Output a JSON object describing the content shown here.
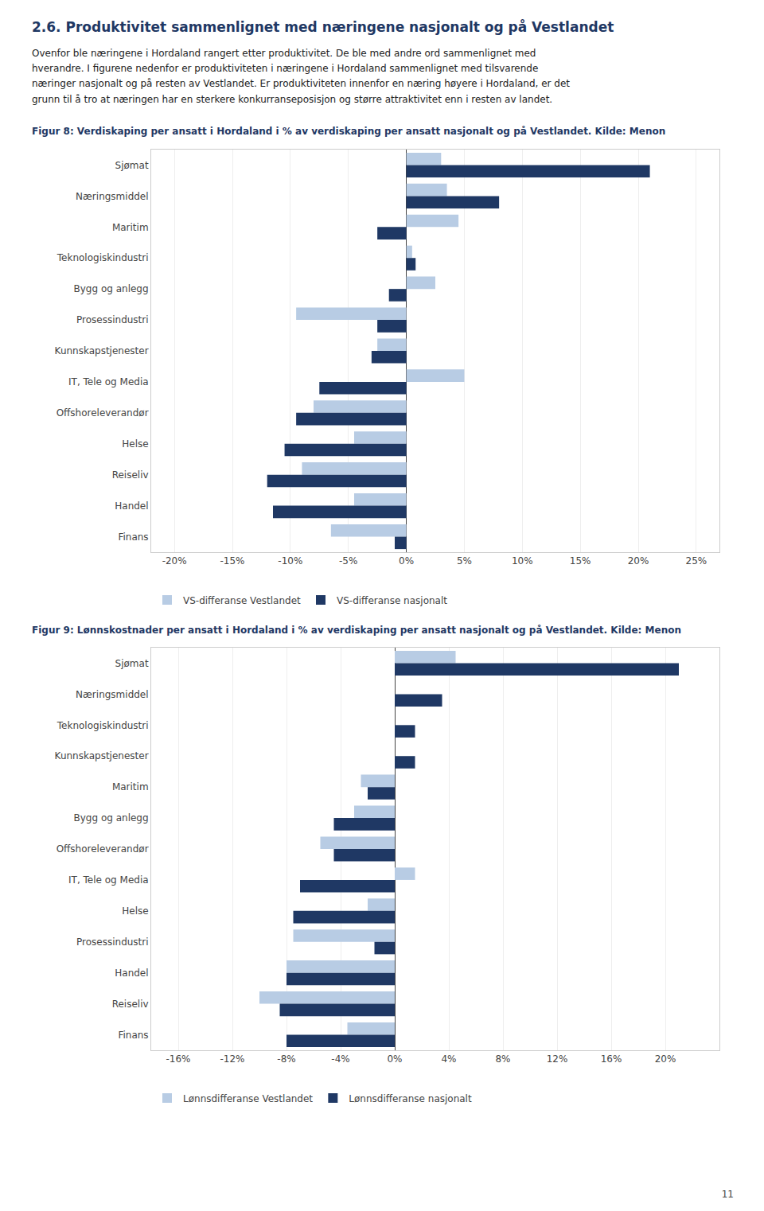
{
  "title": "2.6.    Produktivitet sammenlignet med næringene nasjonalt og på Vestlandet",
  "subtitle": [
    "Ovenfor ble næringene i Hordaland rangert etter produktivitet. De ble med andre ord sammenlignet med",
    "hverandre. I figurene nedenfor er produktiviteten i næringene i Hordaland sammenlignet med tilsvarende",
    "næringer nasjonalt og på resten av Vestlandet. Er produktiviteten innenfor en næring høyere i Hordaland, er det",
    "grunn til å tro at næringen har en sterkere konkurranseposisjon og større attraktivitet enn i resten av landet."
  ],
  "annotations": [
    "11"
  ],
  "chart_data": [
    {
      "type": "bar",
      "orientation": "horizontal",
      "title": "Figur 8: Verdiskaping per ansatt i Hordaland i % av verdiskaping per ansatt nasjonalt og på Vestlandet. Kilde: Menon",
      "categories": [
        "Sjømat",
        "Næringsmiddel",
        "Maritim",
        "Teknologiskindustri",
        "Bygg og anlegg",
        "Prosessindustri",
        "Kunnskapstjenester",
        "IT, Tele og Media",
        "Offshoreleverandør",
        "Helse",
        "Reiseliv",
        "Handel",
        "Finans"
      ],
      "series": [
        {
          "name": "VS-differanse Vestlandet",
          "color": "#b8cce4",
          "values": [
            3.0,
            3.5,
            4.5,
            0.5,
            2.5,
            -9.5,
            -2.5,
            5.0,
            -8.0,
            -4.5,
            -9.0,
            -4.5,
            -6.5
          ]
        },
        {
          "name": "VS-differanse nasjonalt",
          "color": "#1f3864",
          "values": [
            21.0,
            8.0,
            -2.5,
            0.8,
            -1.5,
            -2.5,
            -3.0,
            -7.5,
            -9.5,
            -10.5,
            -12.0,
            -11.5,
            -1.0
          ]
        }
      ],
      "xlim": [
        -22,
        27
      ],
      "xticks": [
        {
          "value": -20,
          "label": "-20%"
        },
        {
          "value": -15,
          "label": "-15%"
        },
        {
          "value": -10,
          "label": "-10%"
        },
        {
          "value": -5,
          "label": "-5%"
        },
        {
          "value": 0,
          "label": "0%"
        },
        {
          "value": 5,
          "label": "5%"
        },
        {
          "value": 10,
          "label": "10%"
        },
        {
          "value": 15,
          "label": "15%"
        },
        {
          "value": 20,
          "label": "20%"
        },
        {
          "value": 25,
          "label": "25%"
        }
      ],
      "grid": true,
      "legend": "lower left"
    },
    {
      "type": "bar",
      "orientation": "horizontal",
      "title": "Figur 9: Lønnskostnader per ansatt i Hordaland i % av verdiskaping per ansatt nasjonalt og på Vestlandet. Kilde: Menon",
      "categories": [
        "Sjømat",
        "Næringsmiddel",
        "Teknologiskindustri",
        "Kunnskapstjenester",
        "Maritim",
        "Bygg og anlegg",
        "Offshoreleverandør",
        "IT, Tele og Media",
        "Helse",
        "Prosessindustri",
        "Handel",
        "Reiseliv",
        "Finans"
      ],
      "series": [
        {
          "name": "Lønnsdifferanse Vestlandet",
          "color": "#b8cce4",
          "values": [
            4.5,
            0.0,
            0.0,
            0.0,
            -2.5,
            -3.0,
            -5.5,
            1.5,
            -2.0,
            -7.5,
            -8.0,
            -10.0,
            -3.5
          ]
        },
        {
          "name": "Lønnsdifferanse nasjonalt",
          "color": "#1f3864",
          "values": [
            21.0,
            3.5,
            1.5,
            1.5,
            -2.0,
            -4.5,
            -4.5,
            -7.0,
            -7.5,
            -1.5,
            -8.0,
            -8.5,
            -8.0
          ]
        }
      ],
      "xlim": [
        -18,
        24
      ],
      "xticks": [
        {
          "value": -16,
          "label": "-16%"
        },
        {
          "value": -12,
          "label": "-12%"
        },
        {
          "value": -8,
          "label": "-8%"
        },
        {
          "value": -4,
          "label": "-4%"
        },
        {
          "value": 0,
          "label": "0%"
        },
        {
          "value": 4,
          "label": "4%"
        },
        {
          "value": 8,
          "label": "8%"
        },
        {
          "value": 12,
          "label": "12%"
        },
        {
          "value": 16,
          "label": "16%"
        },
        {
          "value": 20,
          "label": "20%"
        }
      ],
      "grid": true,
      "legend": "lower left"
    }
  ]
}
